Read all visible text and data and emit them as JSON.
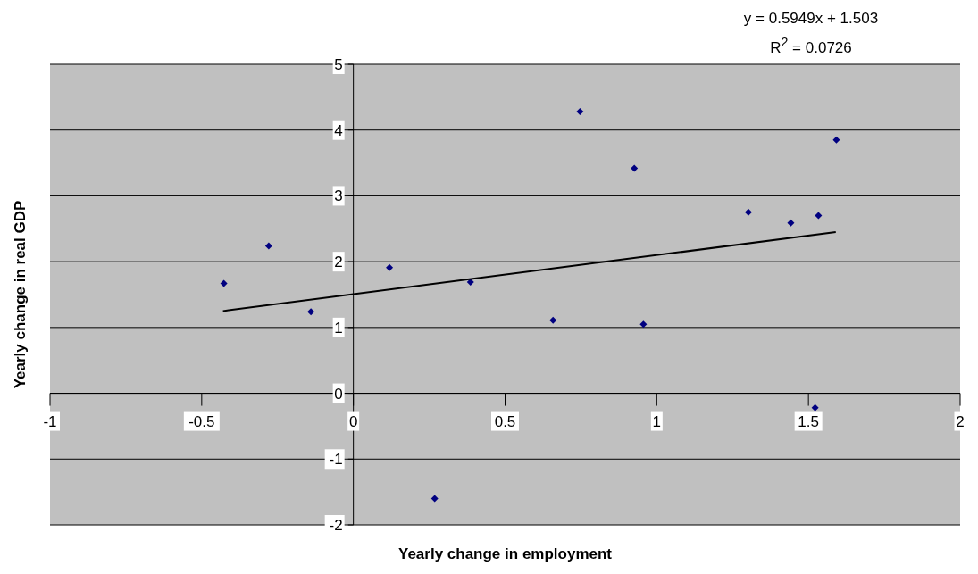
{
  "chart_data": {
    "type": "scatter",
    "xlabel": "Yearly change in employment",
    "ylabel": "Yearly change in real GDP",
    "annotations": [
      "y = 0.5949x + 1.503",
      "R$^{2}$ = 0.0726"
    ],
    "series": [
      {
        "color": "#000080",
        "marker": "diamond",
        "x": [
          -0.427,
          -0.279,
          -0.14,
          0.119,
          0.268,
          0.386,
          0.658,
          0.747,
          0.926,
          0.956,
          1.302,
          1.442,
          1.533,
          1.522,
          1.592
        ],
        "values": [
          1.67,
          2.24,
          1.24,
          1.91,
          -1.6,
          1.69,
          1.11,
          4.28,
          3.42,
          1.05,
          2.75,
          2.59,
          2.7,
          -0.22,
          3.85
        ]
      },
      {
        "type": "line",
        "color": "#000000",
        "marker": "none",
        "x": [
          -0.43,
          1.59
        ],
        "values": [
          1.25,
          2.45
        ]
      }
    ],
    "xlim": [
      -1,
      2
    ],
    "xticks": [
      -1,
      -0.5,
      0,
      0.5,
      1,
      1.5,
      2
    ],
    "ylim": [
      -2,
      5
    ],
    "yticks": [
      -2,
      -1,
      0,
      1,
      2,
      3,
      4,
      5
    ],
    "grid": "y"
  }
}
